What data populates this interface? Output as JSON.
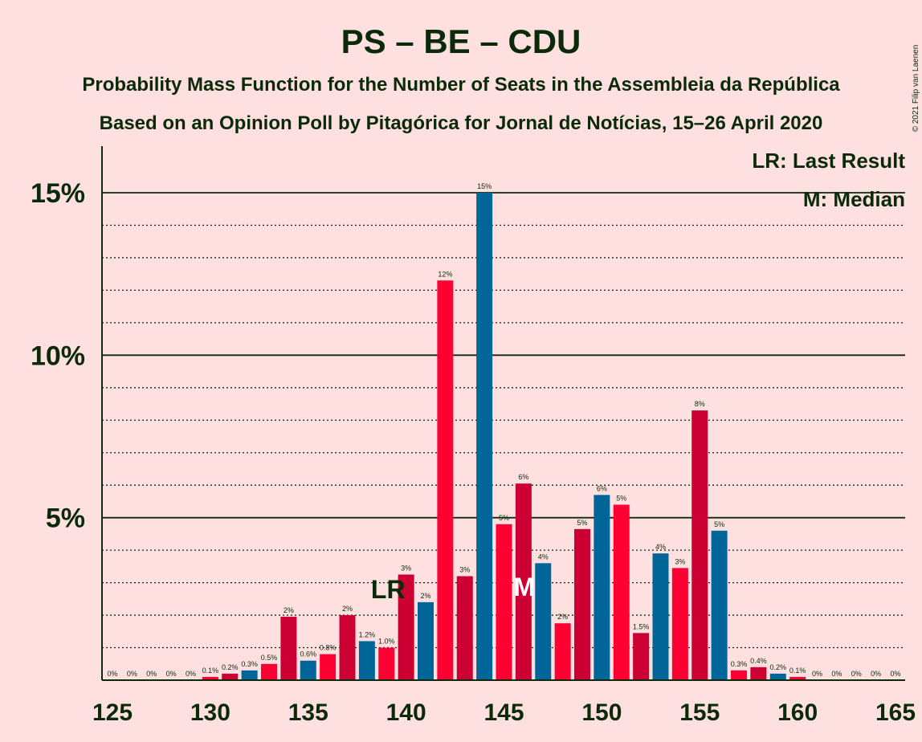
{
  "title": "PS – BE – CDU",
  "subtitle1": "Probability Mass Function for the Number of Seats in the Assembleia da República",
  "subtitle2": "Based on an Opinion Poll by Pitagórica for Jornal de Notícias, 15–26 April 2020",
  "copyright": "© 2021 Filip van Laenen",
  "legend": {
    "lr": "LR: Last Result",
    "m": "M: Median"
  },
  "markers": {
    "lr_text": "LR",
    "lr_seat": 139,
    "m_text": "M",
    "m_seat": 146
  },
  "colors": {
    "background": "#FFE0E0",
    "cycle": [
      "#CC0033",
      "#006699",
      "#FF0033"
    ],
    "text": "#0a2a0a"
  },
  "chart_data": {
    "type": "bar",
    "title": "PS – BE – CDU",
    "xlabel": "",
    "ylabel": "",
    "ylim": [
      0,
      16.5
    ],
    "y_ticks": [
      {
        "value": 5,
        "label": "5%"
      },
      {
        "value": 10,
        "label": "10%"
      },
      {
        "value": 15,
        "label": "15%"
      }
    ],
    "x_ticks": [
      125,
      130,
      135,
      140,
      145,
      150,
      155,
      160,
      165
    ],
    "grid": "dotted every 1%, solid every 5%",
    "legend_position": "top-right",
    "seats": [
      125,
      126,
      127,
      128,
      129,
      130,
      131,
      132,
      133,
      134,
      135,
      136,
      137,
      138,
      139,
      140,
      141,
      142,
      143,
      144,
      145,
      146,
      147,
      148,
      149,
      150,
      151,
      152,
      153,
      154,
      155,
      156,
      157,
      158,
      159,
      160,
      161,
      162,
      163,
      164,
      165
    ],
    "values": [
      0,
      0,
      0,
      0,
      0,
      0.1,
      0.2,
      0.3,
      0.5,
      1.95,
      0.6,
      0.8,
      2.0,
      1.2,
      1.0,
      3.25,
      2.4,
      12.3,
      3.2,
      15.0,
      4.8,
      6.05,
      3.6,
      1.75,
      4.65,
      5.7,
      5.4,
      1.45,
      3.9,
      3.45,
      8.3,
      4.6,
      0.3,
      0.4,
      0.2,
      0.1,
      0,
      0,
      0,
      0,
      0
    ],
    "labels": [
      "0%",
      "0%",
      "0%",
      "0%",
      "0%",
      "0.1%",
      "0.2%",
      "0.3%",
      "0.5%",
      "2%",
      "0.6%",
      "0.8%",
      "2%",
      "1.2%",
      "1.0%",
      "3%",
      "2%",
      "12%",
      "3%",
      "15%",
      "5%",
      "6%",
      "4%",
      "2%",
      "5%",
      "6%",
      "5%",
      "1.5%",
      "4%",
      "3%",
      "8%",
      "5%",
      "0.3%",
      "0.4%",
      "0.2%",
      "0.1%",
      "0%",
      "0%",
      "0%",
      "0%",
      "0%"
    ]
  }
}
